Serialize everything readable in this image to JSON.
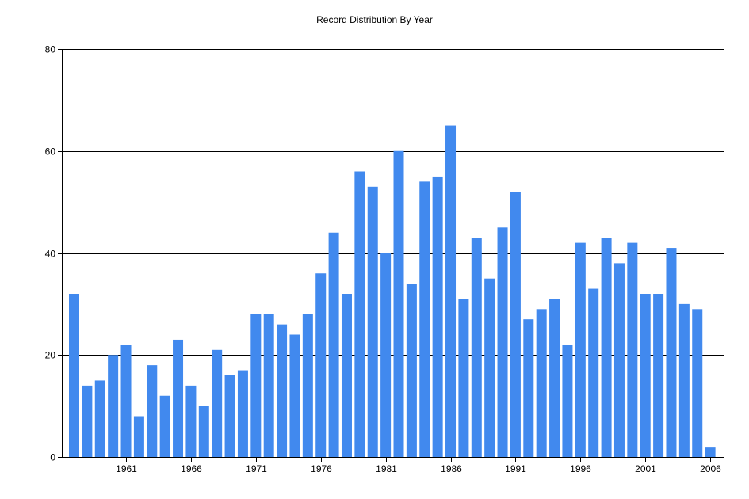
{
  "chart_data": {
    "type": "bar",
    "title": "Record Distribution By Year",
    "xlabel": "",
    "ylabel": "",
    "x": [
      1957,
      1958,
      1959,
      1960,
      1961,
      1962,
      1963,
      1964,
      1965,
      1966,
      1967,
      1968,
      1969,
      1970,
      1971,
      1972,
      1973,
      1974,
      1975,
      1976,
      1977,
      1978,
      1979,
      1980,
      1981,
      1982,
      1983,
      1984,
      1985,
      1986,
      1987,
      1988,
      1989,
      1990,
      1991,
      1992,
      1993,
      1994,
      1995,
      1996,
      1997,
      1998,
      1999,
      2000,
      2001,
      2002,
      2003,
      2004,
      2005,
      2006
    ],
    "values": [
      32,
      14,
      15,
      20,
      22,
      8,
      18,
      12,
      23,
      14,
      10,
      21,
      16,
      17,
      28,
      28,
      26,
      24,
      28,
      36,
      44,
      32,
      56,
      53,
      40,
      60,
      34,
      54,
      55,
      65,
      31,
      43,
      35,
      45,
      52,
      27,
      29,
      31,
      22,
      42,
      33,
      43,
      38,
      42,
      32,
      32,
      41,
      30,
      29,
      2
    ],
    "x_ticks": [
      "1961",
      "1966",
      "1971",
      "1976",
      "1981",
      "1986",
      "1991",
      "1996",
      "2001",
      "2006"
    ],
    "y_ticks": [
      "0",
      "20",
      "40",
      "60",
      "80"
    ],
    "ylim": [
      0,
      80
    ],
    "grid": true,
    "bar_color": "#4189ee",
    "legend": "none"
  }
}
